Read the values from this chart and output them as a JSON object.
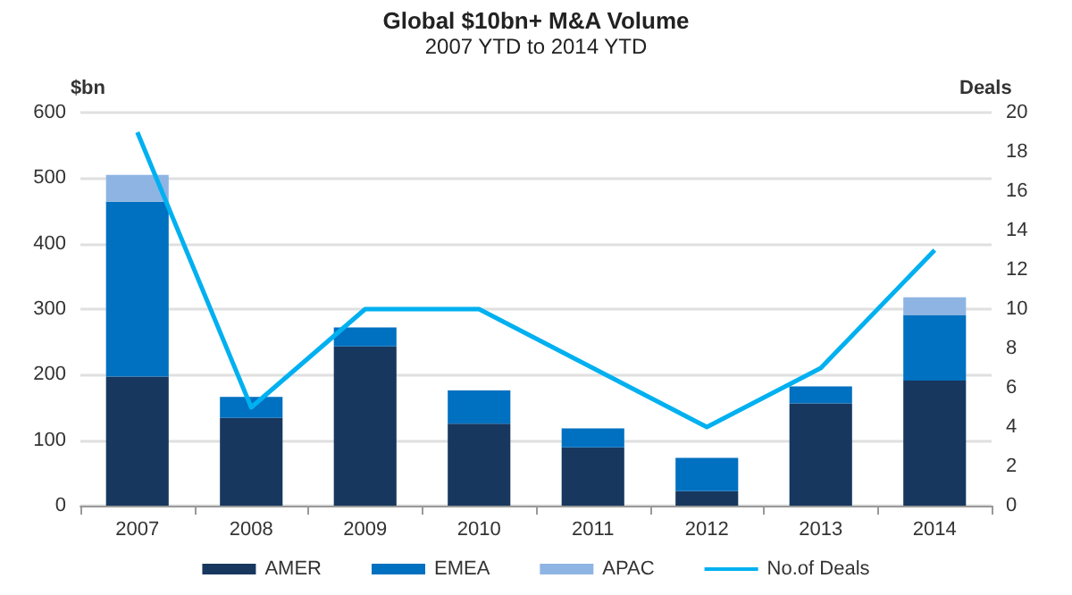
{
  "chart_data": {
    "type": "bar",
    "title": "Global $10bn+ M&A Volume",
    "subtitle": "2007 YTD to 2014 YTD",
    "ylabel": "$bn",
    "y2label": "Deals",
    "categories": [
      "2007",
      "2008",
      "2009",
      "2010",
      "2011",
      "2012",
      "2013",
      "2014"
    ],
    "stacked": true,
    "series": [
      {
        "name": "AMER",
        "color": "#17375e",
        "values": [
          197,
          134,
          243,
          125,
          89,
          22,
          156,
          191
        ]
      },
      {
        "name": "EMEA",
        "color": "#0070c0",
        "values": [
          267,
          32,
          29,
          51,
          29,
          51,
          26,
          100
        ]
      },
      {
        "name": "APAC",
        "color": "#8eb4e3",
        "values": [
          41,
          null,
          null,
          null,
          null,
          null,
          null,
          27
        ]
      },
      {
        "name": "No.of Deals",
        "type": "line",
        "axis": "y2",
        "color": "#00b0f0",
        "values": [
          19,
          5,
          10,
          10,
          7,
          4,
          7,
          13
        ]
      }
    ],
    "ylim": [
      0,
      600
    ],
    "yticks": [
      0,
      100,
      200,
      300,
      400,
      500,
      600
    ],
    "y2lim": [
      0,
      20
    ],
    "y2ticks": [
      0,
      2,
      4,
      6,
      8,
      10,
      12,
      14,
      16,
      18,
      20
    ],
    "grid": "y",
    "legend": "bottom",
    "marker": "none"
  }
}
